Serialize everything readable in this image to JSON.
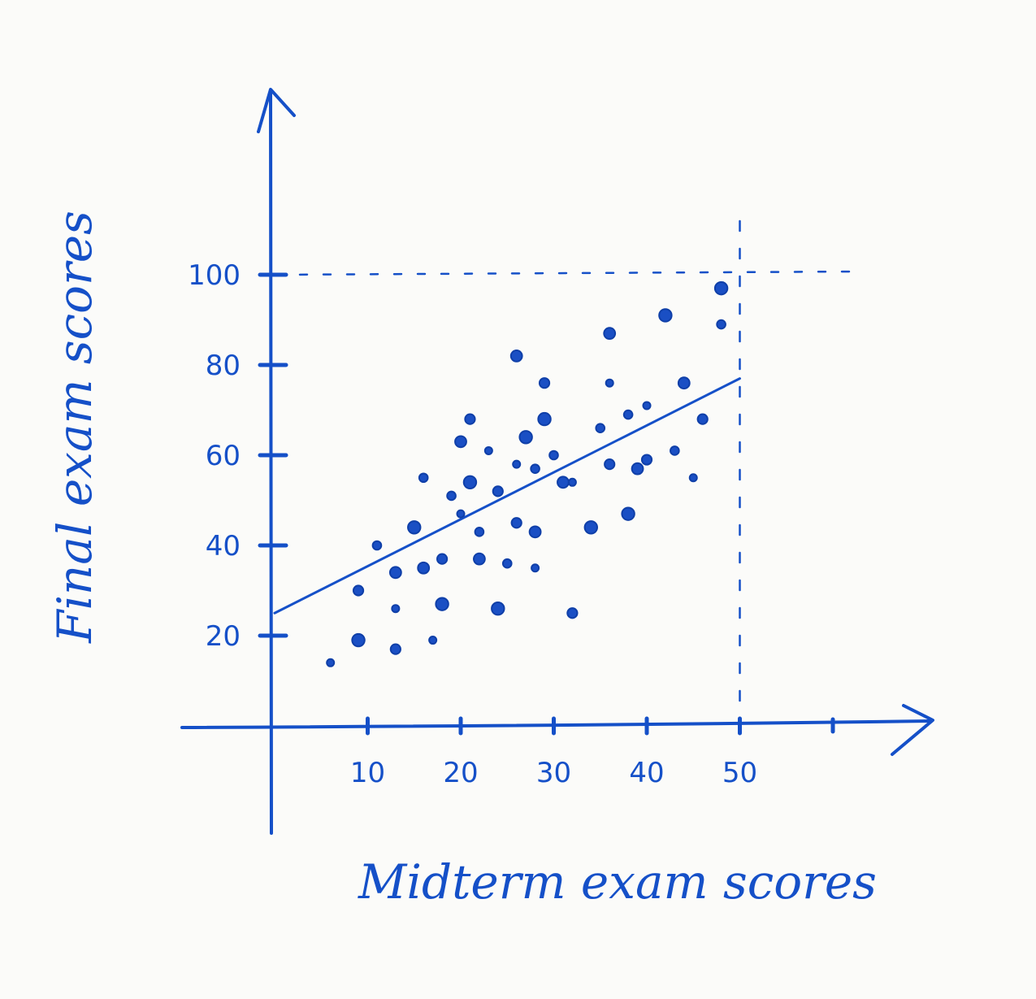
{
  "chart_data": {
    "type": "scatter",
    "xlabel": "Midterm exam scores",
    "ylabel": "Final exam scores",
    "x_ticks": [
      10,
      20,
      30,
      40,
      50
    ],
    "y_ticks": [
      20,
      40,
      60,
      80,
      100
    ],
    "xlim": [
      0,
      70
    ],
    "ylim": [
      -20,
      140
    ],
    "grid": false,
    "reference_lines": {
      "x": 50,
      "y": 100,
      "style": "dashed"
    },
    "trendline": {
      "x": [
        0,
        50
      ],
      "y": [
        25,
        77
      ]
    },
    "points": [
      [
        6,
        14
      ],
      [
        9,
        30
      ],
      [
        9,
        19
      ],
      [
        11,
        40
      ],
      [
        13,
        34
      ],
      [
        13,
        26
      ],
      [
        13,
        17
      ],
      [
        15,
        44
      ],
      [
        16,
        55
      ],
      [
        16,
        35
      ],
      [
        17,
        19
      ],
      [
        18,
        37
      ],
      [
        18,
        27
      ],
      [
        19,
        51
      ],
      [
        20,
        63
      ],
      [
        20,
        47
      ],
      [
        21,
        68
      ],
      [
        21,
        54
      ],
      [
        22,
        43
      ],
      [
        22,
        37
      ],
      [
        23,
        61
      ],
      [
        24,
        52
      ],
      [
        24,
        26
      ],
      [
        25,
        36
      ],
      [
        26,
        82
      ],
      [
        26,
        58
      ],
      [
        26,
        45
      ],
      [
        27,
        64
      ],
      [
        28,
        57
      ],
      [
        28,
        43
      ],
      [
        28,
        35
      ],
      [
        29,
        76
      ],
      [
        29,
        68
      ],
      [
        30,
        60
      ],
      [
        31,
        54
      ],
      [
        32,
        54
      ],
      [
        32,
        25
      ],
      [
        34,
        44
      ],
      [
        35,
        66
      ],
      [
        36,
        87
      ],
      [
        36,
        76
      ],
      [
        36,
        58
      ],
      [
        38,
        47
      ],
      [
        38,
        69
      ],
      [
        39,
        57
      ],
      [
        40,
        71
      ],
      [
        40,
        59
      ],
      [
        42,
        91
      ],
      [
        43,
        61
      ],
      [
        44,
        76
      ],
      [
        45,
        55
      ],
      [
        46,
        68
      ],
      [
        48,
        97
      ],
      [
        48,
        89
      ]
    ]
  }
}
